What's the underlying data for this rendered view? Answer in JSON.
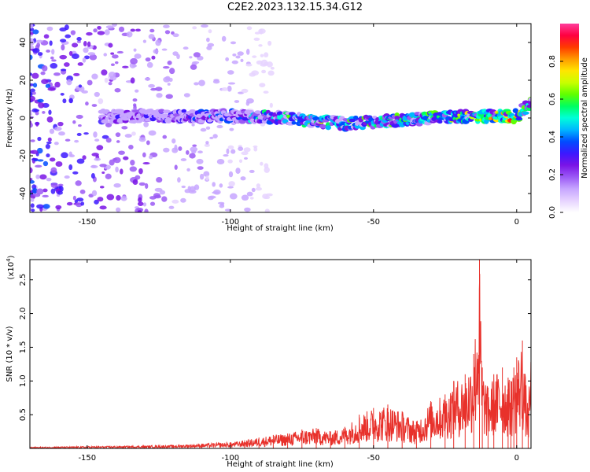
{
  "page": {
    "title": "C2E2.2023.132.15.34.G12"
  },
  "colors": {
    "snr_line": "#e8312b",
    "axis": "#000000",
    "colormap": [
      "#ffffff",
      "#e6d3ff",
      "#c7a6ff",
      "#9b59f5",
      "#7a14e6",
      "#3c18ff",
      "#004cff",
      "#00b7ff",
      "#00ffd9",
      "#00ff60",
      "#5fff00",
      "#c9ff00",
      "#ffe600",
      "#ff9a00",
      "#ff3b00",
      "#ff0040",
      "#ff3e9c"
    ]
  },
  "chart_data": [
    {
      "type": "heatmap",
      "title": "C2E2.2023.132.15.34.G12",
      "xlabel": "Height of straight line (km)",
      "ylabel": "Frequency (Hz)",
      "xlim": [
        -170,
        5
      ],
      "ylim": [
        -50,
        50
      ],
      "x_ticks": [
        -150,
        -100,
        -50,
        0
      ],
      "y_ticks": [
        -40,
        -20,
        0,
        20,
        40
      ],
      "colorbar": {
        "label": "Normalized spectral amplitude",
        "range": [
          0.0,
          1.0
        ],
        "ticks": [
          0.0,
          0.2,
          0.4,
          0.6,
          0.8
        ]
      },
      "ridge": {
        "description_points_x": [
          -145,
          -120,
          -100,
          -80,
          -60,
          -40,
          -20,
          -10,
          0,
          5
        ],
        "center_freq_hz": [
          1,
          1,
          1,
          0,
          -3,
          -1,
          1,
          1,
          1,
          8
        ],
        "peak_amplitude": [
          0.25,
          0.35,
          0.45,
          0.6,
          0.65,
          0.6,
          0.7,
          0.8,
          0.95,
          0.6
        ]
      },
      "noise_region": {
        "x_from": -170,
        "x_to": -110
      }
    },
    {
      "type": "line",
      "xlabel": "Height of straight line (km)",
      "ylabel": "SNR (10 * v/v)",
      "scale_label": "(x10",
      "scale_exponent": "4",
      "xlim": [
        -170,
        5
      ],
      "ylim": [
        0,
        2.8
      ],
      "x_ticks": [
        -150,
        -100,
        -50,
        0
      ],
      "y_ticks": [
        0.5,
        1.0,
        1.5,
        2.0,
        2.5
      ],
      "y_tick_labels": [
        "0.5",
        "1.0",
        "1.5",
        "2.0",
        "2.5"
      ],
      "series": [
        {
          "x": [
            -170,
            -150,
            -130,
            -120,
            -110,
            -100,
            -95,
            -90,
            -85,
            -80,
            -75,
            -70,
            -65,
            -60,
            -55,
            -50,
            -45,
            -40,
            -35,
            -30,
            -25,
            -22,
            -18,
            -15,
            -13,
            -12,
            -10,
            -8,
            -5,
            -3,
            -2,
            -1,
            0,
            2,
            4,
            5
          ],
          "values": [
            0.02,
            0.03,
            0.04,
            0.05,
            0.07,
            0.09,
            0.12,
            0.16,
            0.2,
            0.22,
            0.28,
            0.3,
            0.25,
            0.32,
            0.5,
            0.6,
            0.65,
            0.55,
            0.4,
            0.7,
            0.8,
            1.0,
            1.1,
            1.4,
            2.8,
            1.2,
            0.9,
            1.1,
            1.2,
            1.05,
            1.0,
            1.2,
            1.35,
            1.6,
            0.6,
            1.5
          ]
        }
      ]
    }
  ]
}
